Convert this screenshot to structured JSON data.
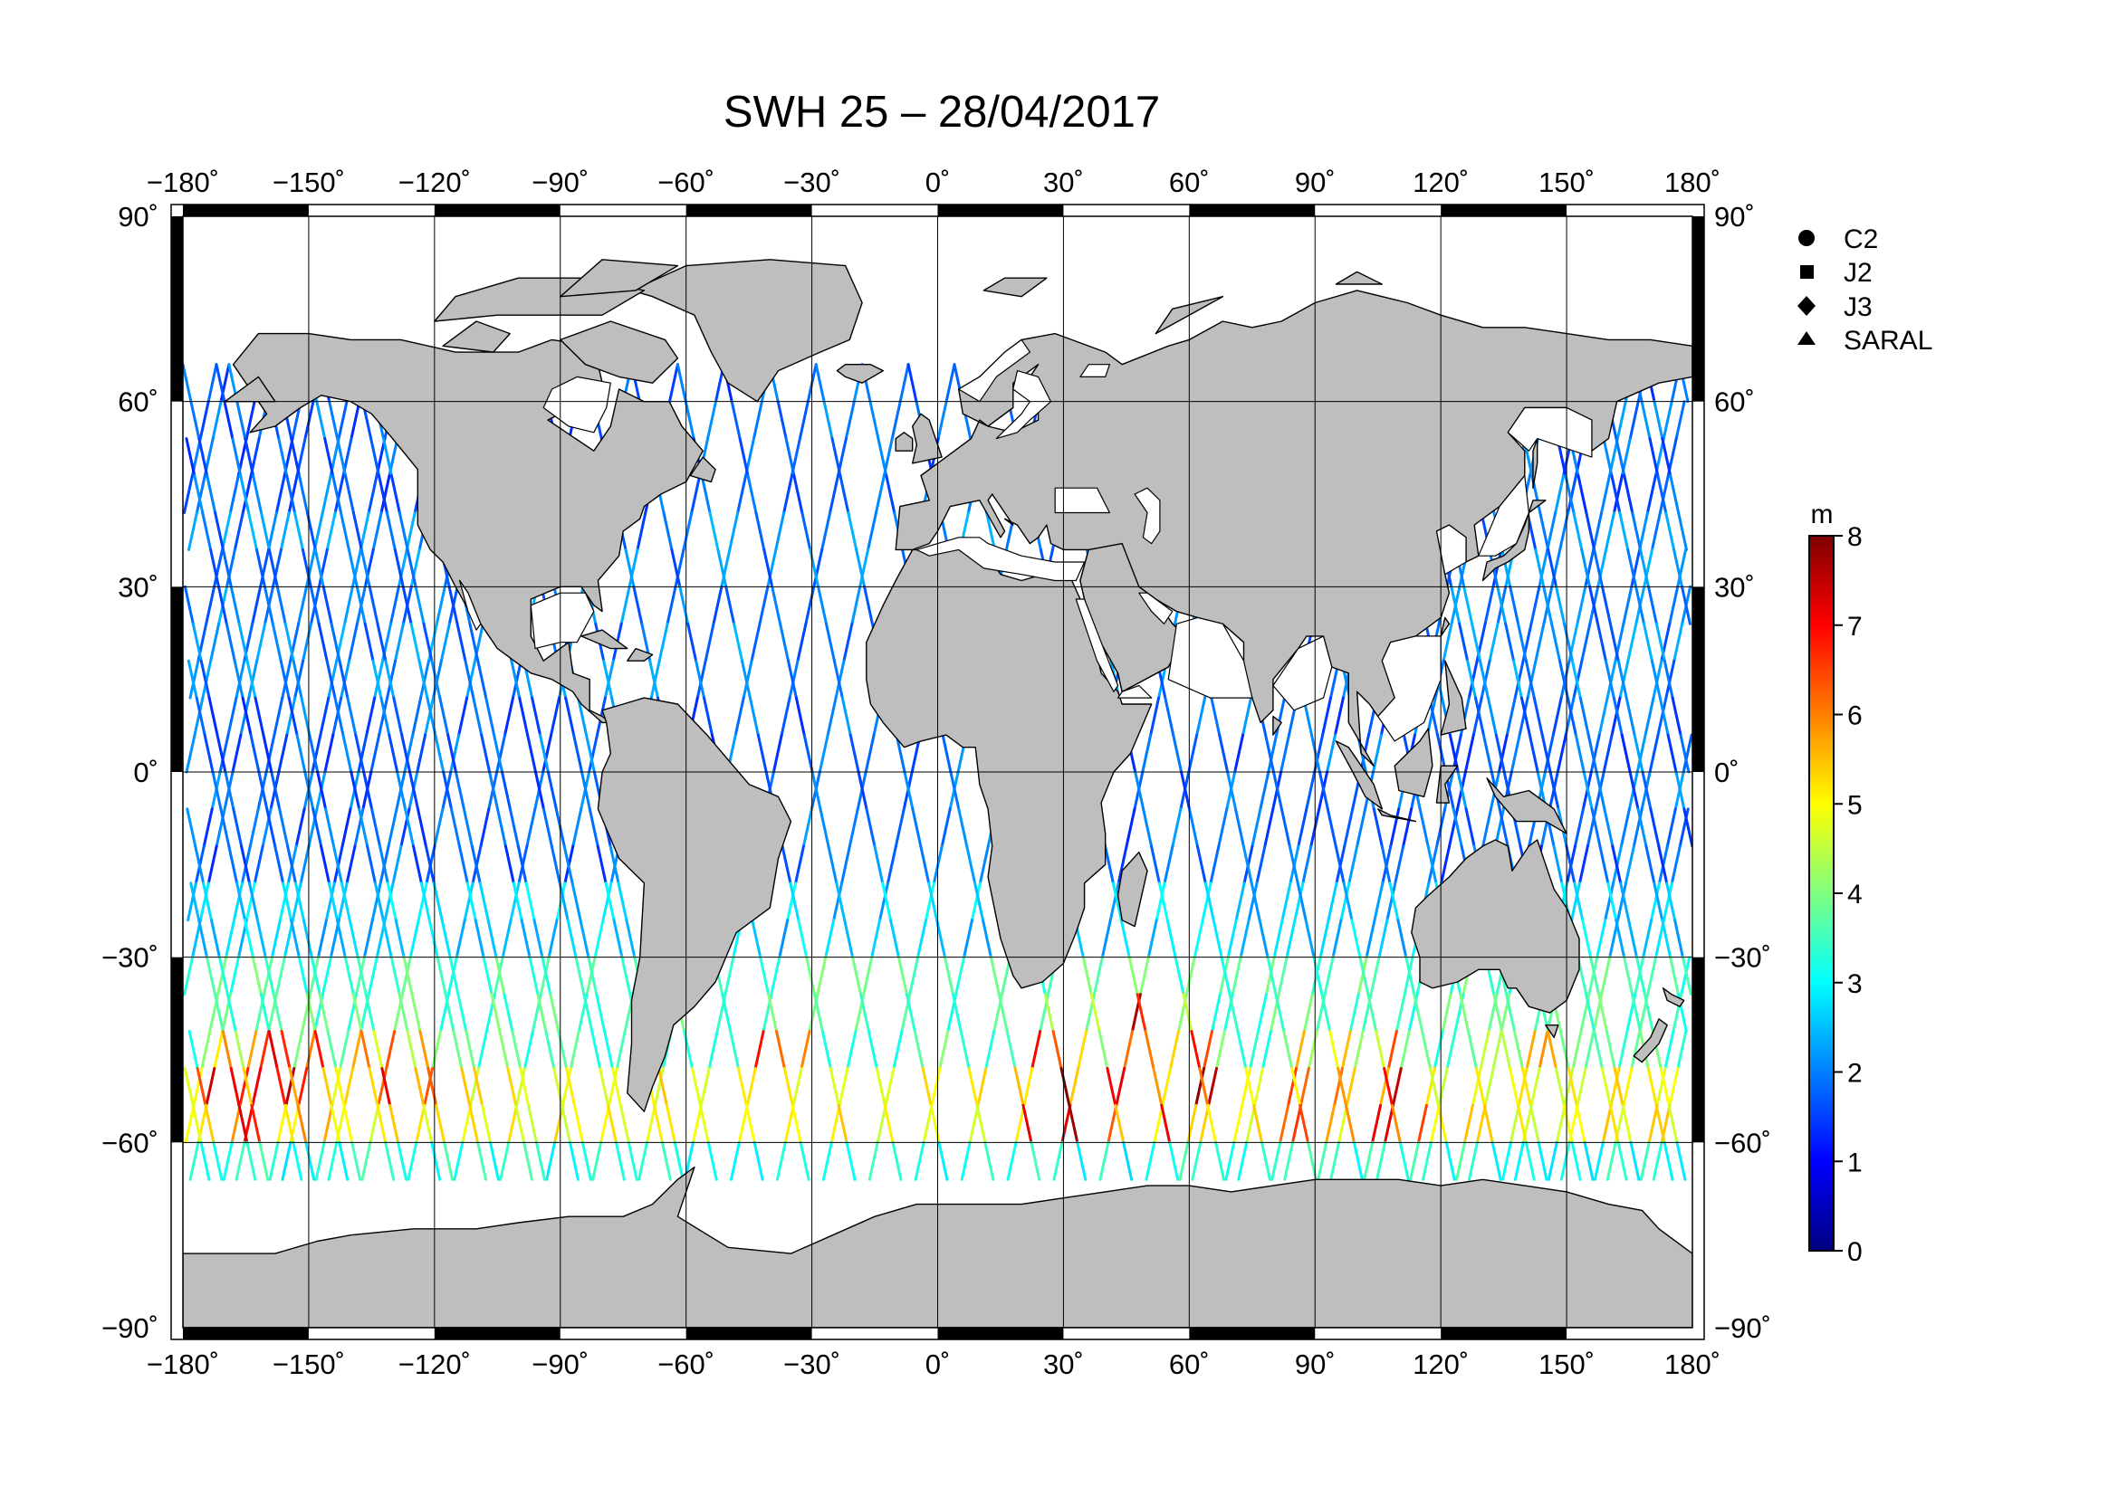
{
  "title": "SWH 25 – 28/04/2017",
  "map": {
    "lon_ticks": [
      -180,
      -150,
      -120,
      -90,
      -60,
      -30,
      0,
      30,
      60,
      90,
      120,
      150,
      180
    ],
    "lat_ticks": [
      90,
      60,
      30,
      0,
      -30,
      -60,
      -90
    ],
    "lon_labels": [
      "−180˚",
      "−150˚",
      "−120˚",
      "−90˚",
      "−60˚",
      "−30˚",
      "0˚",
      "30˚",
      "60˚",
      "90˚",
      "120˚",
      "150˚",
      "180˚"
    ],
    "lat_labels": [
      "90˚",
      "60˚",
      "30˚",
      "0˚",
      "−30˚",
      "−60˚",
      "−90˚"
    ],
    "projection": "equirectangular",
    "land_color": "#bebebe",
    "ocean_color": "#ffffff",
    "grid": true
  },
  "legend": {
    "items": [
      {
        "label": "C2",
        "marker": "circle"
      },
      {
        "label": "J2",
        "marker": "square"
      },
      {
        "label": "J3",
        "marker": "diamond"
      },
      {
        "label": "SARAL",
        "marker": "triangle"
      }
    ]
  },
  "colorbar": {
    "unit": "m",
    "min": 0,
    "max": 8,
    "ticks": [
      0,
      1,
      2,
      3,
      4,
      5,
      6,
      7,
      8
    ],
    "colormap": "jet",
    "colors": [
      "#00007f",
      "#0000ff",
      "#007fff",
      "#00ffff",
      "#7fff7f",
      "#ffff00",
      "#ff7f00",
      "#ff0000",
      "#7f0000"
    ]
  },
  "chart_data": {
    "type": "scatter",
    "title": "SWH 25 – 28/04/2017",
    "xlabel": "",
    "ylabel": "",
    "xlim": [
      -180,
      180
    ],
    "ylim": [
      -90,
      90
    ],
    "color_scale": {
      "unit": "m",
      "range": [
        0,
        8
      ]
    },
    "swh_by_latitude_band": [
      {
        "lat_range": [
          45,
          66
        ],
        "swh_m": 1.8
      },
      {
        "lat_range": [
          15,
          45
        ],
        "swh_m": 2.0
      },
      {
        "lat_range": [
          -15,
          15
        ],
        "swh_m": 1.8
      },
      {
        "lat_range": [
          -30,
          -15
        ],
        "swh_m": 2.6
      },
      {
        "lat_range": [
          -45,
          -30
        ],
        "swh_m": 3.6
      },
      {
        "lat_range": [
          -60,
          -45
        ],
        "swh_m": 5.0
      },
      {
        "lat_range": [
          -66,
          -60
        ],
        "swh_m": 3.2
      }
    ],
    "high_sea_regions": [
      {
        "lon_range": [
          -175,
          -145
        ],
        "lat_range": [
          -60,
          -40
        ],
        "swh_max_m": 7.5
      },
      {
        "lon_range": [
          -140,
          -115
        ],
        "lat_range": [
          -55,
          -40
        ],
        "swh_max_m": 7.2
      },
      {
        "lon_range": [
          -45,
          -30
        ],
        "lat_range": [
          -50,
          -40
        ],
        "swh_max_m": 7.0
      },
      {
        "lon_range": [
          20,
          65
        ],
        "lat_range": [
          -60,
          -35
        ],
        "swh_max_m": 7.8
      },
      {
        "lon_range": [
          80,
          115
        ],
        "lat_range": [
          -60,
          -45
        ],
        "swh_max_m": 7.2
      },
      {
        "lon_range": [
          120,
          150
        ],
        "lat_range": [
          -50,
          -40
        ],
        "swh_max_m": 6.5
      }
    ],
    "satellites": [
      "C2",
      "J2",
      "J3",
      "SARAL"
    ]
  }
}
